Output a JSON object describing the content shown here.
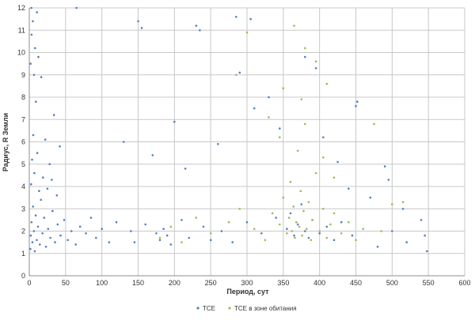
{
  "chart_data": {
    "type": "scatter",
    "title": "",
    "xlabel": "Период, сут",
    "ylabel": "Радиус, R Земли",
    "xlim": [
      0,
      600
    ],
    "ylim": [
      0,
      12
    ],
    "xticks": [
      "0",
      "50",
      "100",
      "150",
      "200",
      "250",
      "300",
      "350",
      "400",
      "450",
      "500",
      "550",
      "600"
    ],
    "yticks": [
      "0",
      "1",
      "2",
      "3",
      "4",
      "5",
      "6",
      "7",
      "8",
      "9",
      "10",
      "11",
      "12"
    ],
    "grid": true,
    "legend_position": "bottom",
    "series": [
      {
        "name": "TCE",
        "color": "#4f81bd",
        "marker": "dot",
        "points": [
          [
            1.5,
            1.2
          ],
          [
            2.1,
            1.8
          ],
          [
            3.0,
            2.4
          ],
          [
            4.2,
            1.5
          ],
          [
            5.1,
            3.1
          ],
          [
            6.3,
            2.0
          ],
          [
            7.5,
            1.1
          ],
          [
            8.8,
            2.7
          ],
          [
            10.2,
            1.6
          ],
          [
            12.0,
            2.2
          ],
          [
            14.5,
            1.4
          ],
          [
            16.0,
            3.4
          ],
          [
            18.2,
            1.9
          ],
          [
            20.5,
            2.6
          ],
          [
            23.0,
            1.3
          ],
          [
            26.0,
            2.1
          ],
          [
            29.0,
            1.7
          ],
          [
            32.0,
            2.9
          ],
          [
            35.5,
            1.5
          ],
          [
            39.0,
            2.3
          ],
          [
            43.0,
            1.8
          ],
          [
            48.0,
            2.5
          ],
          [
            53.0,
            1.6
          ],
          [
            58.0,
            2.0
          ],
          [
            64.0,
            1.4
          ],
          [
            70.0,
            2.2
          ],
          [
            78.0,
            1.9
          ],
          [
            85.0,
            2.6
          ],
          [
            92.0,
            1.7
          ],
          [
            100.0,
            2.1
          ],
          [
            110.0,
            1.5
          ],
          [
            120.0,
            2.4
          ],
          [
            2.5,
            4.1
          ],
          [
            3.8,
            5.2
          ],
          [
            5.5,
            6.3
          ],
          [
            7.0,
            4.6
          ],
          [
            9.0,
            7.8
          ],
          [
            11.0,
            5.5
          ],
          [
            13.5,
            3.8
          ],
          [
            16.5,
            8.9
          ],
          [
            19.0,
            4.4
          ],
          [
            22.0,
            6.1
          ],
          [
            25.0,
            3.9
          ],
          [
            28.0,
            5.0
          ],
          [
            31.0,
            4.3
          ],
          [
            34.0,
            7.2
          ],
          [
            38.0,
            3.6
          ],
          [
            42.0,
            5.8
          ],
          [
            1.8,
            9.5
          ],
          [
            3.2,
            10.8
          ],
          [
            4.8,
            11.4
          ],
          [
            6.5,
            9.0
          ],
          [
            8.0,
            10.2
          ],
          [
            10.5,
            11.8
          ],
          [
            2.8,
            12.0
          ],
          [
            12.5,
            9.8
          ],
          [
            150.0,
            11.4
          ],
          [
            155.0,
            11.1
          ],
          [
            230.0,
            11.2
          ],
          [
            235.0,
            11.0
          ],
          [
            65.0,
            12.0
          ],
          [
            285.0,
            11.6
          ],
          [
            305.0,
            11.5
          ],
          [
            140.0,
            2.0
          ],
          [
            145.0,
            1.5
          ],
          [
            160.0,
            2.3
          ],
          [
            175.0,
            1.9
          ],
          [
            180.0,
            1.6
          ],
          [
            185.0,
            2.1
          ],
          [
            190.0,
            1.8
          ],
          [
            195.0,
            1.4
          ],
          [
            210.0,
            2.5
          ],
          [
            220.0,
            1.7
          ],
          [
            240.0,
            2.2
          ],
          [
            250.0,
            1.6
          ],
          [
            265.0,
            2.0
          ],
          [
            280.0,
            1.5
          ],
          [
            300.0,
            2.4
          ],
          [
            320.0,
            1.9
          ],
          [
            340.0,
            2.6
          ],
          [
            355.0,
            2.1
          ],
          [
            360.0,
            2.8
          ],
          [
            365.0,
            1.8
          ],
          [
            370.0,
            2.3
          ],
          [
            375.0,
            3.2
          ],
          [
            380.0,
            2.0
          ],
          [
            385.0,
            1.7
          ],
          [
            390.0,
            2.5
          ],
          [
            400.0,
            1.9
          ],
          [
            410.0,
            2.2
          ],
          [
            420.0,
            1.6
          ],
          [
            430.0,
            2.4
          ],
          [
            445.0,
            1.8
          ],
          [
            450.0,
            7.6
          ],
          [
            452.0,
            7.8
          ],
          [
            490.0,
            4.9
          ],
          [
            495.0,
            4.3
          ],
          [
            500.0,
            2.0
          ],
          [
            540.0,
            2.5
          ],
          [
            545.0,
            1.8
          ],
          [
            548.0,
            1.1
          ],
          [
            130.0,
            6.0
          ],
          [
            170.0,
            5.4
          ],
          [
            200.0,
            6.9
          ],
          [
            215.0,
            4.8
          ],
          [
            260.0,
            5.9
          ],
          [
            290.0,
            9.1
          ],
          [
            310.0,
            7.5
          ],
          [
            330.0,
            8.0
          ],
          [
            345.0,
            6.6
          ],
          [
            380.0,
            9.8
          ],
          [
            395.0,
            9.3
          ],
          [
            405.0,
            6.2
          ],
          [
            425.0,
            5.1
          ],
          [
            440.0,
            3.9
          ],
          [
            470.0,
            3.5
          ],
          [
            480.0,
            1.3
          ],
          [
            515.0,
            3.0
          ],
          [
            520.0,
            1.5
          ]
        ]
      },
      {
        "name": "TCE в зоне обитания",
        "color": "#9bbb59",
        "marker": "dot",
        "points": [
          [
            180.0,
            1.7
          ],
          [
            195.0,
            2.2
          ],
          [
            210.0,
            1.5
          ],
          [
            230.0,
            2.6
          ],
          [
            250.0,
            1.9
          ],
          [
            275.0,
            2.4
          ],
          [
            290.0,
            3.0
          ],
          [
            310.0,
            2.1
          ],
          [
            325.0,
            1.6
          ],
          [
            335.0,
            2.8
          ],
          [
            345.0,
            2.3
          ],
          [
            350.0,
            3.5
          ],
          [
            355.0,
            1.9
          ],
          [
            358.0,
            2.6
          ],
          [
            360.0,
            4.2
          ],
          [
            362.0,
            2.0
          ],
          [
            364.0,
            3.1
          ],
          [
            366.0,
            1.7
          ],
          [
            368.0,
            2.4
          ],
          [
            370.0,
            5.6
          ],
          [
            372.0,
            2.2
          ],
          [
            374.0,
            3.8
          ],
          [
            376.0,
            1.8
          ],
          [
            378.0,
            2.9
          ],
          [
            380.0,
            6.8
          ],
          [
            382.0,
            2.1
          ],
          [
            385.0,
            3.3
          ],
          [
            388.0,
            1.6
          ],
          [
            390.0,
            2.5
          ],
          [
            395.0,
            4.6
          ],
          [
            400.0,
            2.0
          ],
          [
            405.0,
            3.0
          ],
          [
            410.0,
            1.7
          ],
          [
            415.0,
            2.3
          ],
          [
            420.0,
            2.8
          ],
          [
            430.0,
            1.9
          ],
          [
            440.0,
            2.4
          ],
          [
            450.0,
            1.6
          ],
          [
            460.0,
            2.1
          ],
          [
            475.0,
            6.8
          ],
          [
            485.0,
            2.0
          ],
          [
            500.0,
            3.2
          ],
          [
            515.0,
            3.3
          ],
          [
            380.0,
            10.2
          ],
          [
            395.0,
            9.6
          ],
          [
            350.0,
            8.4
          ],
          [
            285.0,
            9.0
          ],
          [
            330.0,
            7.1
          ],
          [
            365.0,
            11.2
          ],
          [
            410.0,
            8.6
          ],
          [
            300.0,
            10.9
          ],
          [
            375.0,
            7.9
          ],
          [
            345.0,
            6.2
          ],
          [
            405.0,
            5.3
          ],
          [
            420.0,
            4.4
          ]
        ]
      }
    ]
  }
}
